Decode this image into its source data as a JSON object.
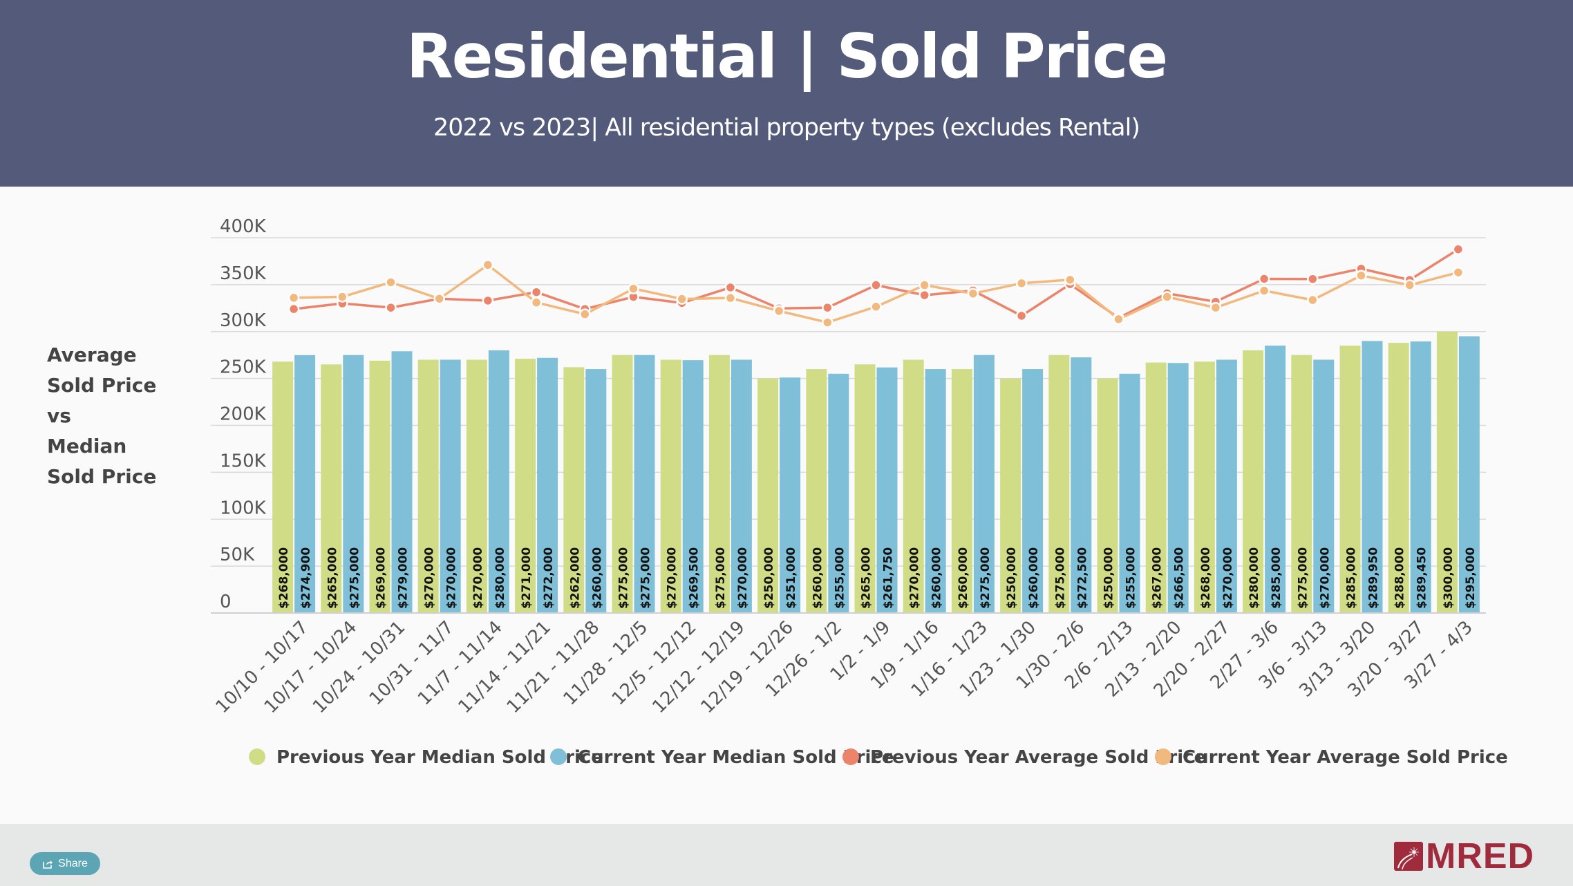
{
  "header": {
    "title": "Residential | Sold Price",
    "subtitle": "2022 vs 2023| All residential property types (excludes Rental)"
  },
  "side_label": [
    "Average",
    "Sold Price",
    "vs",
    "Median",
    "Sold Price"
  ],
  "footer": {
    "share_label": "Share",
    "logo_text": "MRED"
  },
  "colors": {
    "header_bg": "#535a7a",
    "prev_median": "#d1dd86",
    "curr_median": "#7fc0d8",
    "prev_avg": "#ec836b",
    "curr_avg": "#f2b97e",
    "brand": "#a02b3c",
    "share_button": "#5ba5b4"
  },
  "chart_data": {
    "type": "bar",
    "title": "",
    "xlabel": "",
    "ylabel": "Average Sold Price vs Median Sold Price",
    "ylim": [
      0,
      400000
    ],
    "yticks": [
      0,
      50000,
      100000,
      150000,
      200000,
      250000,
      300000,
      350000,
      400000
    ],
    "ytick_labels": [
      "0",
      "50K",
      "100K",
      "150K",
      "200K",
      "250K",
      "300K",
      "350K",
      "400K"
    ],
    "grid": true,
    "legend_position": "bottom",
    "categories": [
      "10/10 - 10/17",
      "10/17 - 10/24",
      "10/24 - 10/31",
      "10/31 - 11/7",
      "11/7 - 11/14",
      "11/14 - 11/21",
      "11/21 - 11/28",
      "11/28 - 12/5",
      "12/5 - 12/12",
      "12/12 - 12/19",
      "12/19 - 12/26",
      "12/26 - 1/2",
      "1/2 - 1/9",
      "1/9 - 1/16",
      "1/16 - 1/23",
      "1/23 - 1/30",
      "1/30 - 2/6",
      "2/6 - 2/13",
      "2/13 - 2/20",
      "2/20 - 2/27",
      "2/27 - 3/6",
      "3/6 - 3/13",
      "3/13 - 3/20",
      "3/20 - 3/27",
      "3/27 - 4/3"
    ],
    "series": [
      {
        "name": "Previous Year Median Sold Price",
        "kind": "bar",
        "color": "#d1dd86",
        "values": [
          268000,
          265000,
          269000,
          270000,
          270000,
          271000,
          262000,
          275000,
          270000,
          275000,
          250000,
          260000,
          265000,
          270000,
          260000,
          250000,
          275000,
          250000,
          267000,
          268000,
          280000,
          275000,
          285000,
          288000,
          300000
        ],
        "labels": [
          "$268,000",
          "$265,000",
          "$269,000",
          "$270,000",
          "$270,000",
          "$271,000",
          "$262,000",
          "$275,000",
          "$270,000",
          "$275,000",
          "$250,000",
          "$260,000",
          "$265,000",
          "$270,000",
          "$260,000",
          "$250,000",
          "$275,000",
          "$250,000",
          "$267,000",
          "$268,000",
          "$280,000",
          "$275,000",
          "$285,000",
          "$288,000",
          "$300,000"
        ]
      },
      {
        "name": "Current Year Median Sold Price",
        "kind": "bar",
        "color": "#7fc0d8",
        "values": [
          274900,
          275000,
          279000,
          270000,
          280000,
          272000,
          260000,
          275000,
          269500,
          270000,
          251000,
          255000,
          261750,
          260000,
          275000,
          260000,
          272500,
          255000,
          266500,
          270000,
          285000,
          270000,
          289950,
          289450,
          295000
        ],
        "labels": [
          "$274,900",
          "$275,000",
          "$279,000",
          "$270,000",
          "$280,000",
          "$272,000",
          "$260,000",
          "$275,000",
          "$269,500",
          "$270,000",
          "$251,000",
          "$255,000",
          "$261,750",
          "$260,000",
          "$275,000",
          "$260,000",
          "$272,500",
          "$255,000",
          "$266,500",
          "$270,000",
          "$285,000",
          "$270,000",
          "$289,950",
          "$289,450",
          "$295,000"
        ]
      },
      {
        "name": "Previous Year Average Sold Price",
        "kind": "line",
        "color": "#ec836b",
        "values": [
          324000,
          330000,
          325500,
          335000,
          333000,
          342000,
          324000,
          337000,
          330500,
          347000,
          324700,
          325500,
          349500,
          338800,
          343700,
          316800,
          350500,
          314500,
          340700,
          331800,
          356200,
          356000,
          367000,
          355000,
          387700
        ]
      },
      {
        "name": "Current Year Average Sold Price",
        "kind": "line",
        "color": "#f2b97e",
        "values": [
          336000,
          337000,
          352500,
          335000,
          371000,
          331000,
          318500,
          345700,
          334700,
          335800,
          322000,
          309700,
          326500,
          349500,
          340500,
          351500,
          355200,
          313200,
          337000,
          325500,
          343600,
          333600,
          359700,
          349500,
          363000
        ]
      }
    ]
  }
}
